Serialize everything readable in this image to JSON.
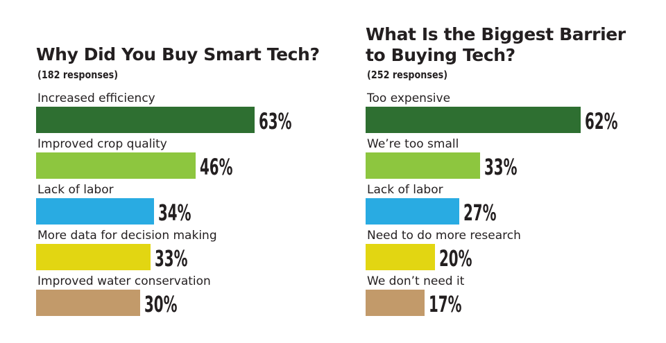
{
  "chart_data": [
    {
      "type": "bar",
      "orientation": "horizontal",
      "title": "Why Did You Buy Smart Tech?",
      "subtitle": "(182 responses)",
      "categories": [
        "Increased efficiency",
        "Improved crop quality",
        "Lack of labor",
        "More data for decision making",
        "Improved water conservation"
      ],
      "values": [
        63,
        46,
        34,
        33,
        30
      ],
      "value_labels": [
        "63%",
        "46%",
        "34%",
        "33%",
        "30%"
      ],
      "colors": [
        "#2e6f31",
        "#8dc63f",
        "#29abe2",
        "#e2d612",
        "#c29a6a"
      ],
      "unit": "%",
      "xlim": [
        0,
        100
      ],
      "grid": false
    },
    {
      "type": "bar",
      "orientation": "horizontal",
      "title": [
        "What Is the Biggest Barrier",
        "to Buying Tech?"
      ],
      "subtitle": "(252 responses)",
      "categories": [
        "Too expensive",
        "We’re too small",
        "Lack of labor",
        "Need to do more research",
        "We don’t need it"
      ],
      "values": [
        62,
        33,
        27,
        20,
        17
      ],
      "value_labels": [
        "62%",
        "33%",
        "27%",
        "20%",
        "17%"
      ],
      "colors": [
        "#2e6f31",
        "#8dc63f",
        "#29abe2",
        "#e2d612",
        "#c29a6a"
      ],
      "unit": "%",
      "xlim": [
        0,
        100
      ],
      "grid": false
    }
  ]
}
